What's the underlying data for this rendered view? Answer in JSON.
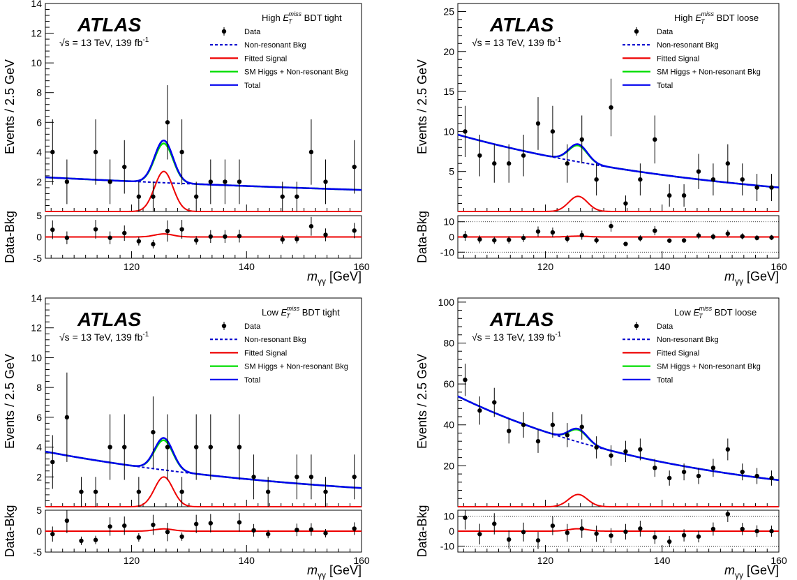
{
  "figure": {
    "experiment": "ATLAS",
    "energy_lumi_prefix": "√s = 13 TeV, 139 fb",
    "energy_lumi_exp": "-1",
    "xlabel_main": "m",
    "xlabel_sub": "γγ",
    "xlabel_unit": "[GeV]",
    "ylabel_main": "Events / 2.5 GeV",
    "ylabel_ratio": "Data-Bkg",
    "legend": {
      "data": "Data",
      "bkg": "Non-resonant Bkg",
      "signal": "Fitted Signal",
      "smh": "SM Higgs + Non-resonant Bkg",
      "total": "Total"
    },
    "colors": {
      "data": "#000000",
      "bkg": "#0000cc",
      "signal": "#ee0000",
      "smh": "#00dd00",
      "total": "#0000ee"
    }
  },
  "chart_data": [
    {
      "type": "scatter",
      "category_prefix": "High",
      "category_suffix": "BDT tight",
      "x": [
        106.25,
        108.75,
        113.75,
        116.25,
        118.75,
        121.25,
        123.75,
        126.25,
        128.75,
        131.25,
        133.75,
        136.25,
        138.75,
        146.25,
        148.75,
        151.25,
        153.75,
        158.75
      ],
      "y": [
        4,
        2,
        4,
        2,
        3,
        1,
        1,
        6,
        4,
        1,
        2,
        2,
        2,
        1,
        1,
        4,
        2,
        3
      ],
      "err": [
        2.2,
        1.5,
        2.2,
        1.5,
        1.8,
        1.0,
        1.0,
        2.5,
        2.2,
        1.0,
        1.5,
        1.5,
        1.5,
        1.0,
        1.0,
        2.2,
        1.5,
        1.8
      ],
      "bkg": {
        "b0": 2.3,
        "b1": 1.45
      },
      "signal_peak": 2.7,
      "smh_peak": 0.15,
      "xlim": [
        105,
        160
      ],
      "ylim": [
        0,
        14
      ],
      "yticks": [
        2,
        4,
        6,
        8,
        10,
        12,
        14
      ],
      "ratio_ylim": [
        -5,
        5
      ],
      "ratio_yticks": [
        -5,
        0,
        5
      ],
      "ratio_y": [
        1.7,
        -0.2,
        1.8,
        -0.2,
        0.9,
        -1.0,
        -1.7,
        1.4,
        1.8,
        -0.8,
        0.1,
        0.1,
        0.2,
        -0.6,
        -0.5,
        2.5,
        0.5,
        1.5
      ],
      "ratio_err": [
        2.2,
        1.5,
        2.2,
        1.5,
        1.8,
        1.0,
        1.0,
        2.5,
        2.2,
        1.0,
        1.5,
        1.5,
        1.5,
        1.0,
        1.0,
        2.2,
        1.5,
        1.8
      ],
      "ratio_dotted": []
    },
    {
      "type": "scatter",
      "category_prefix": "High",
      "category_suffix": "BDT loose",
      "x": [
        106.25,
        108.75,
        111.25,
        113.75,
        116.25,
        118.75,
        121.25,
        123.75,
        126.25,
        128.75,
        131.25,
        133.75,
        136.25,
        138.75,
        141.25,
        143.75,
        146.25,
        148.75,
        151.25,
        153.75,
        156.25,
        158.75
      ],
      "y": [
        10,
        7,
        6,
        6,
        7,
        11,
        10,
        6,
        9,
        4,
        13,
        1,
        4,
        9,
        2,
        2,
        5,
        4,
        6,
        4,
        3,
        3
      ],
      "err": [
        3.2,
        2.6,
        2.4,
        2.4,
        2.6,
        3.3,
        3.2,
        2.4,
        3.0,
        2.0,
        3.6,
        1.0,
        2.0,
        3.0,
        1.4,
        1.4,
        2.2,
        2.0,
        2.4,
        2.0,
        1.7,
        1.7
      ],
      "bkg": {
        "b0": 9.6,
        "b1": 3.0
      },
      "signal_peak": 1.9,
      "smh_peak": 0.3,
      "xlim": [
        105,
        160
      ],
      "ylim": [
        0,
        26
      ],
      "yticks": [
        5,
        10,
        15,
        20,
        25
      ],
      "ratio_ylim": [
        -14,
        14
      ],
      "ratio_yticks": [
        -10,
        0,
        10
      ],
      "ratio_y": [
        0.7,
        -1.6,
        -2.2,
        -1.9,
        -0.7,
        3.6,
        3.0,
        -1.2,
        1.2,
        -2.2,
        7.1,
        -4.6,
        -0.9,
        4.1,
        -2.4,
        -2.3,
        0.9,
        0.2,
        2.2,
        0.4,
        -0.6,
        -0.4
      ],
      "ratio_err": [
        3.2,
        2.6,
        2.4,
        2.4,
        2.6,
        3.3,
        3.2,
        2.4,
        3.0,
        2.0,
        3.6,
        1.0,
        2.0,
        3.0,
        1.4,
        1.4,
        2.2,
        2.0,
        2.4,
        2.0,
        1.7,
        1.7
      ],
      "ratio_dotted": [
        -10,
        10
      ]
    },
    {
      "type": "scatter",
      "category_prefix": "Low",
      "category_suffix": "BDT tight",
      "x": [
        106.25,
        108.75,
        111.25,
        113.75,
        116.25,
        118.75,
        121.25,
        123.75,
        126.25,
        128.75,
        131.25,
        133.75,
        138.75,
        141.25,
        143.75,
        148.75,
        151.25,
        153.75,
        158.75
      ],
      "y": [
        3,
        6,
        1,
        1,
        4,
        4,
        1,
        5,
        4,
        1,
        4,
        4,
        4,
        2,
        1,
        2,
        2,
        1,
        2
      ],
      "err": [
        1.8,
        3.0,
        1.0,
        1.0,
        2.2,
        2.2,
        1.0,
        2.4,
        2.2,
        1.0,
        2.2,
        2.2,
        2.2,
        1.5,
        1.0,
        1.5,
        1.5,
        1.0,
        1.5
      ],
      "bkg": {
        "b0": 3.7,
        "b1": 1.25
      },
      "signal_peak": 2.0,
      "smh_peak": 0.15,
      "xlim": [
        105,
        160
      ],
      "ylim": [
        0,
        14
      ],
      "yticks": [
        2,
        4,
        6,
        8,
        10,
        12,
        14
      ],
      "ratio_ylim": [
        -5,
        5
      ],
      "ratio_yticks": [
        -5,
        0,
        5
      ],
      "ratio_y": [
        -0.7,
        2.5,
        -2.3,
        -2.1,
        1.1,
        1.3,
        -1.5,
        1.5,
        -0.2,
        -1.3,
        1.7,
        1.9,
        2.1,
        0.2,
        -0.7,
        0.3,
        0.4,
        -0.5,
        0.6
      ],
      "ratio_err": [
        1.8,
        3.0,
        1.0,
        1.0,
        2.2,
        2.2,
        1.0,
        2.4,
        2.2,
        1.0,
        2.2,
        2.2,
        2.2,
        1.5,
        1.0,
        1.5,
        1.5,
        1.0,
        1.5
      ],
      "ratio_dotted": []
    },
    {
      "type": "scatter",
      "category_prefix": "Low",
      "category_suffix": "BDT loose",
      "x": [
        106.25,
        108.75,
        111.25,
        113.75,
        116.25,
        118.75,
        121.25,
        123.75,
        126.25,
        128.75,
        131.25,
        133.75,
        136.25,
        138.75,
        141.25,
        143.75,
        146.25,
        148.75,
        151.25,
        153.75,
        156.25,
        158.75
      ],
      "y": [
        62,
        47,
        51,
        37,
        40,
        32,
        40,
        35,
        39,
        29,
        25,
        27,
        28,
        19,
        14,
        17,
        15,
        19,
        28,
        17,
        15,
        14
      ],
      "err": [
        7.9,
        6.9,
        7.1,
        6.1,
        6.3,
        5.7,
        6.3,
        5.9,
        6.2,
        5.4,
        5.0,
        5.2,
        5.3,
        4.4,
        3.7,
        4.1,
        3.9,
        4.4,
        5.3,
        4.1,
        3.9,
        3.7
      ],
      "bkg": {
        "b0": 54.0,
        "b1": 13.0
      },
      "signal_peak": 6.0,
      "smh_peak": 0.4,
      "xlim": [
        105,
        160
      ],
      "ylim": [
        0,
        102
      ],
      "yticks": [
        20,
        40,
        60,
        80,
        100
      ],
      "ratio_ylim": [
        -14,
        14
      ],
      "ratio_yticks": [
        -10,
        0,
        10
      ],
      "ratio_y": [
        9.0,
        -2.0,
        4.9,
        -5.6,
        -0.6,
        -6.2,
        3.6,
        -1.1,
        1.7,
        -1.7,
        -3.0,
        -0.4,
        1.7,
        -4.1,
        -7.0,
        -2.8,
        -3.6,
        1.4,
        11.4,
        1.4,
        0.0,
        0.0
      ],
      "ratio_err": [
        7.9,
        6.9,
        7.1,
        6.1,
        6.3,
        5.7,
        6.3,
        5.9,
        6.2,
        5.4,
        5.0,
        5.2,
        5.3,
        4.4,
        3.7,
        4.1,
        3.9,
        4.4,
        5.3,
        4.1,
        3.9,
        3.7
      ],
      "ratio_dotted": [
        -10,
        10
      ]
    }
  ]
}
